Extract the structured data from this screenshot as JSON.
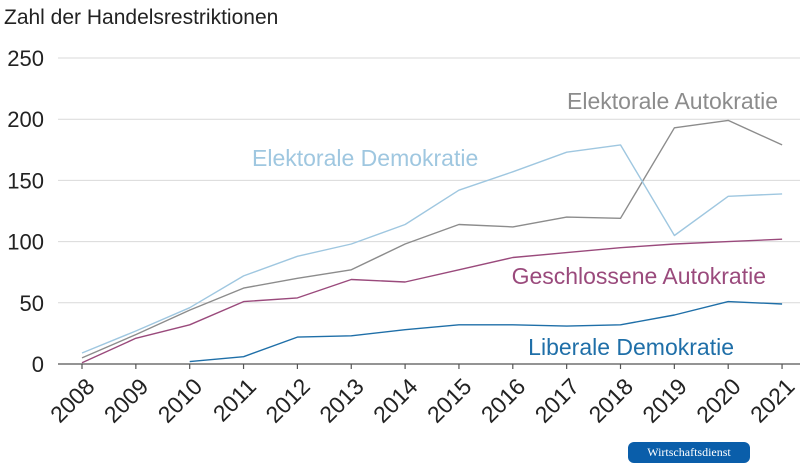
{
  "chart_data": {
    "type": "line",
    "title": "",
    "xlabel": "",
    "ylabel": "Zahl der Handelsrestriktionen",
    "ylim": [
      0,
      250
    ],
    "yticks": [
      0,
      50,
      100,
      150,
      200,
      250
    ],
    "grid": true,
    "categories": [
      "2008",
      "2009",
      "2010",
      "2011",
      "2012",
      "2013",
      "2014",
      "2015",
      "2016",
      "2017",
      "2018",
      "2019",
      "2020",
      "2021"
    ],
    "series": [
      {
        "name": "Elektorale Autokratie",
        "color": "#8c8c8c",
        "values": [
          5,
          24,
          44,
          62,
          70,
          77,
          98,
          114,
          112,
          120,
          119,
          193,
          199,
          179
        ]
      },
      {
        "name": "Elektorale Demokratie",
        "color": "#9fc7e0",
        "values": [
          9,
          27,
          46,
          72,
          88,
          98,
          114,
          142,
          157,
          173,
          179,
          105,
          137,
          139
        ]
      },
      {
        "name": "Geschlossene Autokratie",
        "color": "#9a4a7c",
        "values": [
          1,
          21,
          32,
          51,
          54,
          69,
          67,
          77,
          87,
          91,
          95,
          98,
          100,
          102
        ]
      },
      {
        "name": "Liberale Demokratie",
        "color": "#1f6fa8",
        "values": [
          null,
          null,
          2,
          6,
          22,
          23,
          28,
          32,
          32,
          31,
          32,
          40,
          51,
          49
        ]
      }
    ]
  },
  "brand": {
    "label": "Wirtschaftsdienst"
  }
}
